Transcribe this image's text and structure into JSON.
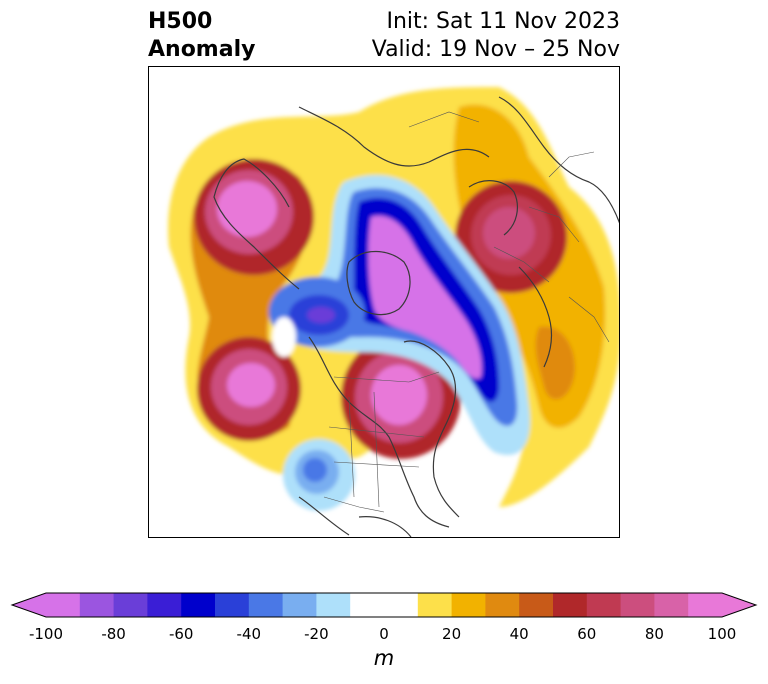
{
  "title": {
    "line1": "H500",
    "line2": "Anomaly",
    "init": "Init: Sat 11 Nov 2023",
    "valid": "Valid: 19 Nov – 25 Nov"
  },
  "colorbar": {
    "unit": "m",
    "extend": "both",
    "levels": [
      -100,
      -90,
      -80,
      -70,
      -60,
      -50,
      -40,
      -30,
      -20,
      -10,
      10,
      20,
      30,
      40,
      50,
      60,
      70,
      80,
      90,
      100
    ],
    "colors": [
      "#d672e8",
      "#9b55e0",
      "#6a3ed8",
      "#3a1ed6",
      "#0000cc",
      "#2a40d8",
      "#4a78e6",
      "#79aef0",
      "#aee0fa",
      "#ffffff",
      "#fde04a",
      "#f2b200",
      "#e08a10",
      "#c85a18",
      "#b0282a",
      "#c03a52",
      "#cc4e7e",
      "#d862a8",
      "#e878d8"
    ],
    "ticks": [
      "-100",
      "-80",
      "-60",
      "-40",
      "-20",
      "0",
      "20",
      "40",
      "60",
      "80",
      "100"
    ]
  }
}
